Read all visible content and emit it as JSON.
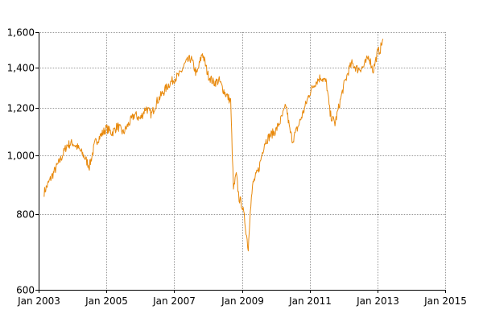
{
  "chart_data": {
    "type": "line",
    "title": "",
    "xlabel": "",
    "ylabel": "",
    "y_scale": "log",
    "grid": true,
    "xlim": [
      "2003-01-01",
      "2015-01-01"
    ],
    "ylim": [
      600,
      1600
    ],
    "x_ticks": [
      "Jan 2003",
      "Jan 2005",
      "Jan 2007",
      "Jan 2009",
      "Jan 2011",
      "Jan 2013",
      "Jan 2015"
    ],
    "y_ticks": [
      "600",
      "800",
      "1,000",
      "1,200",
      "1,400",
      "1,600"
    ],
    "colors": {
      "line": "#e8890c"
    },
    "series": [
      {
        "name": "",
        "x": [
          "2003-03-01",
          "2003-05-01",
          "2003-07-01",
          "2003-09-01",
          "2003-11-01",
          "2004-01-01",
          "2004-03-01",
          "2004-05-01",
          "2004-07-01",
          "2004-09-01",
          "2004-11-01",
          "2005-01-01",
          "2005-03-01",
          "2005-05-01",
          "2005-07-01",
          "2005-09-01",
          "2005-11-01",
          "2006-01-01",
          "2006-03-01",
          "2006-05-01",
          "2006-07-01",
          "2006-09-01",
          "2006-11-01",
          "2007-01-01",
          "2007-03-01",
          "2007-05-01",
          "2007-07-01",
          "2007-09-01",
          "2007-11-01",
          "2008-01-01",
          "2008-03-01",
          "2008-05-01",
          "2008-07-01",
          "2008-09-01",
          "2008-10-01",
          "2008-11-01",
          "2008-12-01",
          "2009-01-01",
          "2009-02-01",
          "2009-03-10",
          "2009-04-01",
          "2009-05-01",
          "2009-07-01",
          "2009-09-01",
          "2009-11-01",
          "2010-01-01",
          "2010-03-01",
          "2010-04-23",
          "2010-06-01",
          "2010-07-01",
          "2010-09-01",
          "2010-11-01",
          "2011-01-01",
          "2011-03-01",
          "2011-05-01",
          "2011-07-01",
          "2011-08-10",
          "2011-10-01",
          "2011-12-01",
          "2012-01-01",
          "2012-03-01",
          "2012-04-01",
          "2012-06-01",
          "2012-08-01",
          "2012-10-01",
          "2012-11-15",
          "2013-01-01",
          "2013-02-01",
          "2013-03-01"
        ],
        "values": [
          870,
          910,
          950,
          990,
          1040,
          1050,
          1030,
          1000,
          960,
          1050,
          1080,
          1110,
          1090,
          1120,
          1090,
          1130,
          1170,
          1150,
          1200,
          1170,
          1230,
          1270,
          1310,
          1340,
          1360,
          1420,
          1450,
          1360,
          1480,
          1360,
          1320,
          1330,
          1270,
          1230,
          880,
          930,
          850,
          830,
          780,
          700,
          820,
          900,
          950,
          1050,
          1080,
          1100,
          1150,
          1210,
          1100,
          1060,
          1120,
          1190,
          1270,
          1320,
          1350,
          1320,
          1170,
          1130,
          1240,
          1300,
          1390,
          1420,
          1390,
          1400,
          1460,
          1380,
          1480,
          1500,
          1560
        ]
      }
    ]
  }
}
